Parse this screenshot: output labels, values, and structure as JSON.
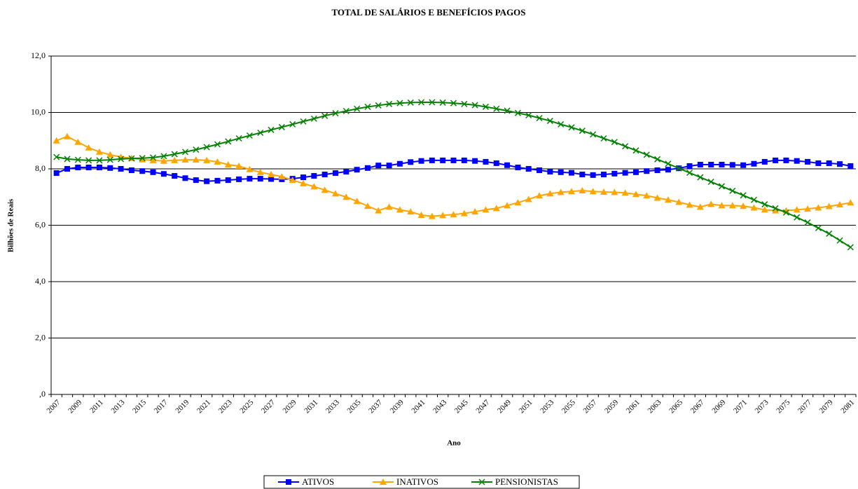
{
  "chart_data": {
    "type": "line",
    "title": "TOTAL DE SALÁRIOS E BENEFÍCIOS PAGOS",
    "x_label": "Ano",
    "y_label": "Bilhões de Reais",
    "categories": [
      "2007",
      null,
      "2009",
      null,
      "2011",
      null,
      "2013",
      null,
      "2015",
      null,
      "2017",
      null,
      "2019",
      null,
      "2021",
      null,
      "2023",
      null,
      "2025",
      null,
      "2027",
      null,
      "2029",
      null,
      "2031",
      null,
      "2033",
      null,
      "2035",
      null,
      "2037",
      null,
      "2039",
      null,
      "2041",
      null,
      "2043",
      null,
      "2045",
      null,
      "2047",
      null,
      "2049",
      null,
      "2051",
      null,
      "2053",
      null,
      "2055",
      null,
      "2057",
      null,
      "2059",
      null,
      "2061",
      null,
      "2063",
      null,
      "2065",
      null,
      "2067",
      null,
      "2069",
      null,
      "2071",
      null,
      "2073",
      null,
      "2075",
      null,
      "2077",
      null,
      "2079",
      null,
      "2081"
    ],
    "ylim": [
      0,
      12
    ],
    "yticks": [
      {
        "value": 0,
        "label": ",0"
      },
      {
        "value": 2,
        "label": "2,0"
      },
      {
        "value": 4,
        "label": "4,0"
      },
      {
        "value": 6,
        "label": "6,0"
      },
      {
        "value": 8,
        "label": "8,0"
      },
      {
        "value": 10,
        "label": "10,0"
      },
      {
        "value": 12,
        "label": "12,0"
      }
    ],
    "grid": true,
    "legend": "bottom",
    "series": [
      {
        "name": "ATIVOS",
        "color": "#0000ff",
        "marker": "square",
        "values": [
          7.85,
          8.0,
          8.05,
          8.05,
          8.05,
          8.03,
          8.0,
          7.95,
          7.92,
          7.88,
          7.82,
          7.75,
          7.67,
          7.6,
          7.56,
          7.58,
          7.6,
          7.63,
          7.65,
          7.65,
          7.64,
          7.63,
          7.65,
          7.7,
          7.75,
          7.8,
          7.85,
          7.9,
          7.97,
          8.03,
          8.12,
          8.12,
          8.18,
          8.24,
          8.28,
          8.3,
          8.3,
          8.3,
          8.3,
          8.28,
          8.25,
          8.2,
          8.13,
          8.05,
          8.0,
          7.95,
          7.9,
          7.88,
          7.86,
          7.8,
          7.78,
          7.8,
          7.83,
          7.86,
          7.88,
          7.92,
          7.95,
          7.97,
          8.02,
          8.1,
          8.15,
          8.15,
          8.15,
          8.14,
          8.13,
          8.18,
          8.25,
          8.3,
          8.3,
          8.28,
          8.25,
          8.2,
          8.2,
          8.17,
          8.1
        ]
      },
      {
        "name": "INATIVOS",
        "color": "#ffa500",
        "marker": "triangle",
        "values": [
          9.0,
          9.15,
          8.95,
          8.75,
          8.6,
          8.5,
          8.42,
          8.38,
          8.33,
          8.3,
          8.28,
          8.3,
          8.32,
          8.32,
          8.3,
          8.25,
          8.15,
          8.1,
          7.98,
          7.88,
          7.8,
          7.72,
          7.6,
          7.48,
          7.37,
          7.25,
          7.12,
          7.0,
          6.85,
          6.68,
          6.52,
          6.65,
          6.55,
          6.48,
          6.36,
          6.32,
          6.35,
          6.38,
          6.42,
          6.48,
          6.55,
          6.6,
          6.7,
          6.8,
          6.92,
          7.05,
          7.12,
          7.17,
          7.2,
          7.23,
          7.2,
          7.18,
          7.17,
          7.15,
          7.1,
          7.05,
          6.97,
          6.9,
          6.82,
          6.72,
          6.65,
          6.75,
          6.7,
          6.7,
          6.68,
          6.62,
          6.55,
          6.52,
          6.52,
          6.55,
          6.58,
          6.62,
          6.67,
          6.73,
          6.8
        ]
      },
      {
        "name": "PENSIONISTAS",
        "color": "#008000",
        "marker": "x",
        "values": [
          8.42,
          8.35,
          8.32,
          8.3,
          8.3,
          8.32,
          8.35,
          8.37,
          8.38,
          8.4,
          8.45,
          8.52,
          8.6,
          8.68,
          8.77,
          8.87,
          8.97,
          9.08,
          9.18,
          9.28,
          9.38,
          9.48,
          9.58,
          9.68,
          9.78,
          9.88,
          9.97,
          10.05,
          10.13,
          10.2,
          10.25,
          10.3,
          10.33,
          10.35,
          10.36,
          10.36,
          10.35,
          10.33,
          10.3,
          10.26,
          10.2,
          10.13,
          10.06,
          9.98,
          9.9,
          9.8,
          9.7,
          9.58,
          9.47,
          9.35,
          9.22,
          9.08,
          8.95,
          8.8,
          8.65,
          8.5,
          8.34,
          8.18,
          8.02,
          7.86,
          7.7,
          7.54,
          7.38,
          7.22,
          7.06,
          6.9,
          6.74,
          6.6,
          6.45,
          6.28,
          6.1,
          5.9,
          5.7,
          5.46,
          5.22
        ]
      }
    ]
  }
}
